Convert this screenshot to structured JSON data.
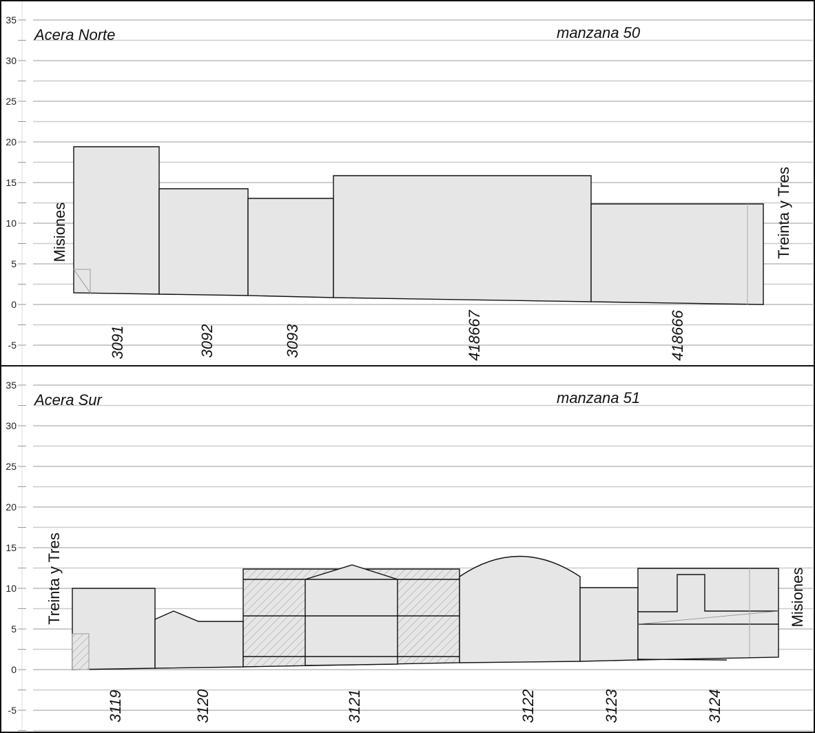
{
  "y_ticks": [
    "35",
    "30",
    "25",
    "20",
    "15",
    "10",
    "5",
    "0",
    "-5"
  ],
  "north": {
    "title": "Acera Norte",
    "block": "manzana 50",
    "street_left": "Misiones",
    "street_right": "Treinta y Tres",
    "lots": [
      "3091",
      "3092",
      "3093",
      "418667",
      "418666"
    ]
  },
  "south": {
    "title": "Acera Sur",
    "block": "manzana 51",
    "street_left": "Treinta y Tres",
    "street_right": "Misiones",
    "lots": [
      "3119",
      "3120",
      "3121",
      "3122",
      "3123",
      "3124"
    ]
  }
}
